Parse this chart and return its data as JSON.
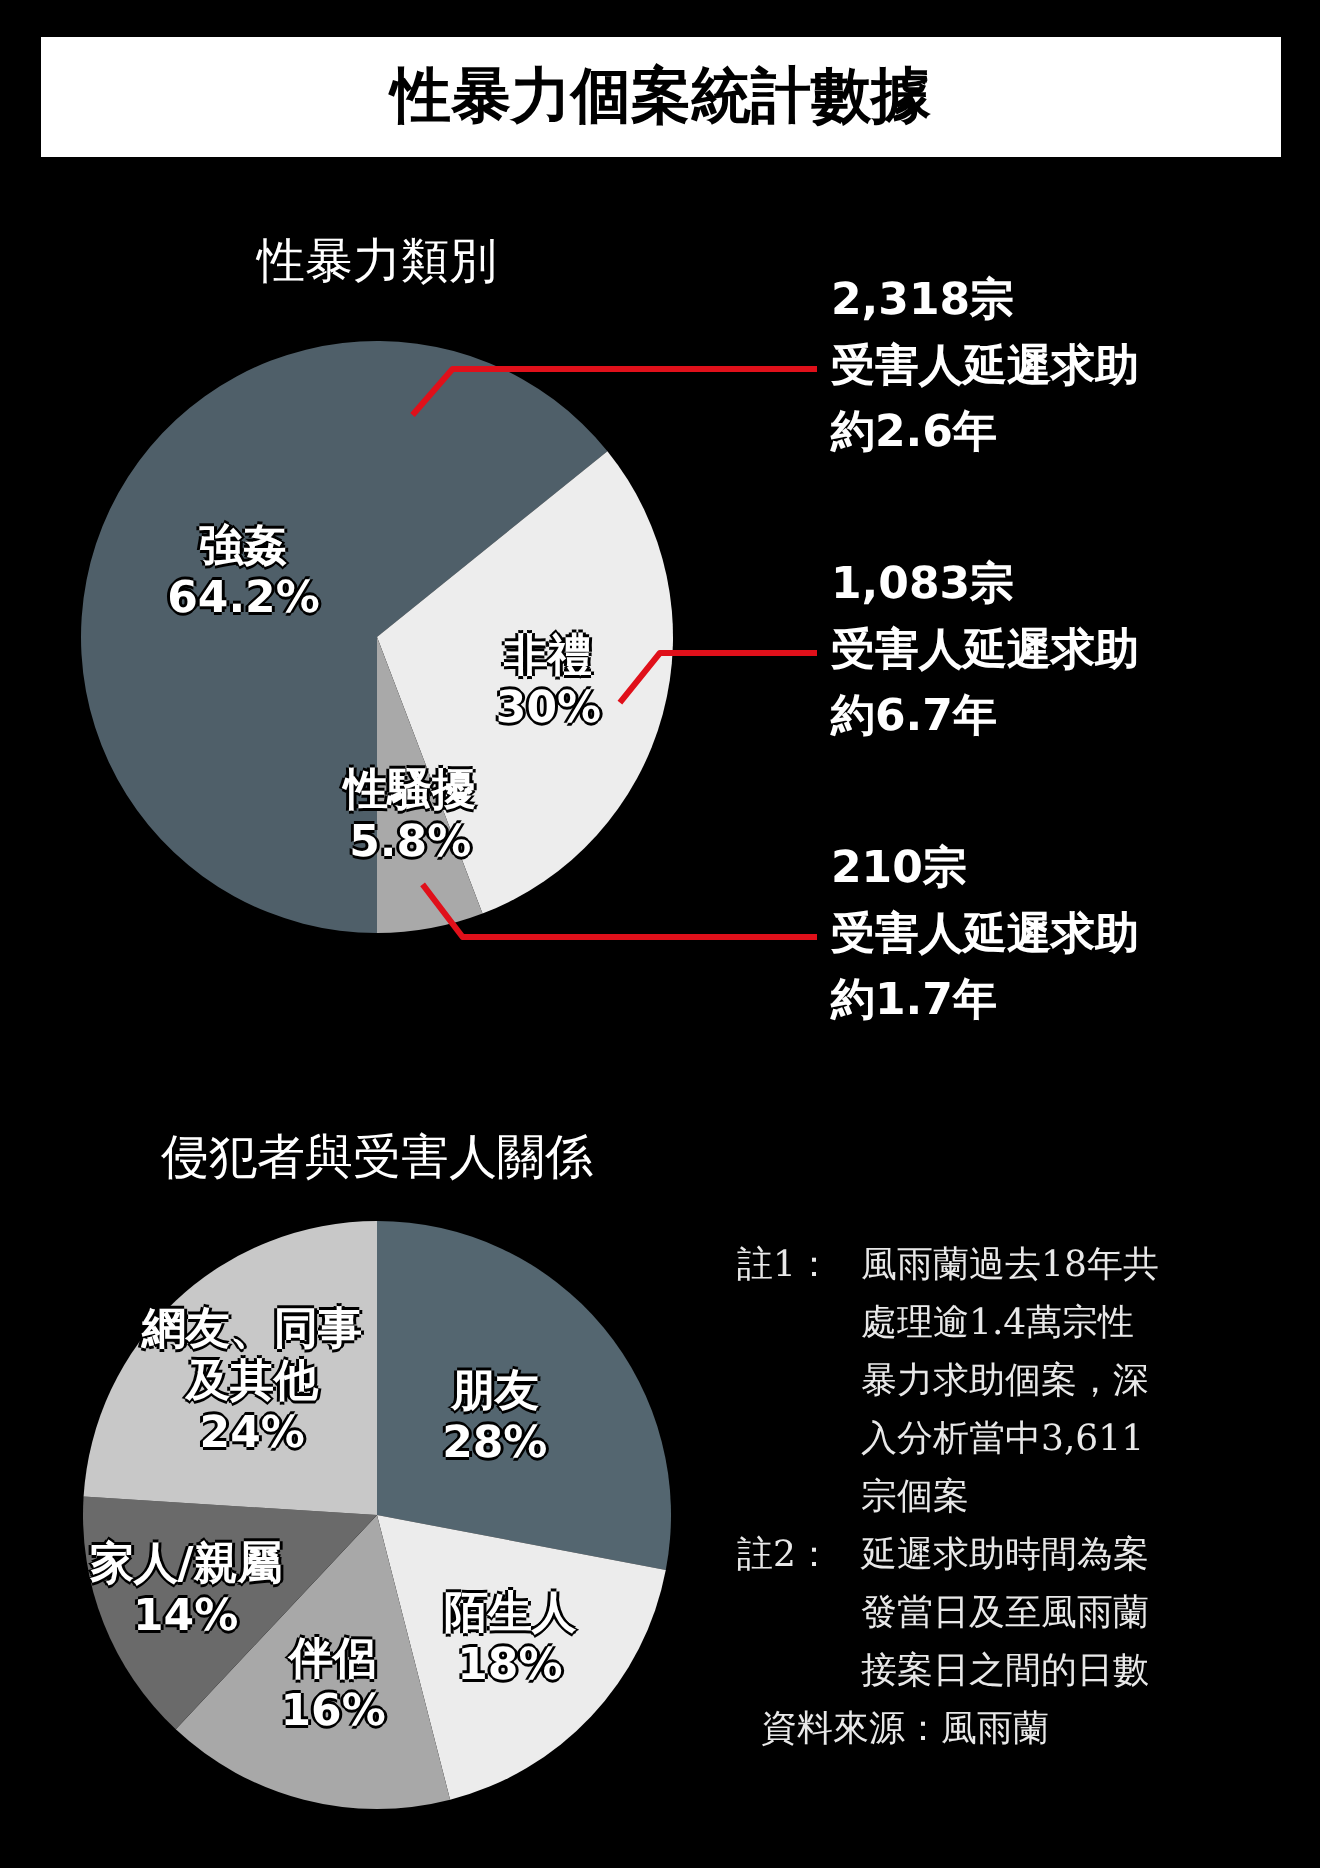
{
  "chart_data": [
    {
      "type": "pie",
      "title": "性暴力個案統計數據",
      "subtitle": "性暴力類別",
      "categories": [
        "強姦",
        "非禮",
        "性騷擾"
      ],
      "values": [
        64.2,
        30,
        5.8
      ],
      "value_labels": [
        "64.2%",
        "30%",
        "5.8%"
      ],
      "colors": [
        "#4f5f69",
        "#ededed",
        "#a9a9a9"
      ],
      "annotations": [
        "2,318宗",
        "受害人延遲求助",
        "約2.6年",
        "1,083宗",
        "受害人延遲求助",
        "約6.7年",
        "210宗",
        "受害人延遲求助",
        "約1.7年"
      ]
    },
    {
      "type": "pie",
      "title": "侵犯者與受害人關係",
      "categories": [
        "朋友",
        "陌生人",
        "伴侶",
        "家人/親屬",
        "網友、同事及其他"
      ],
      "values": [
        28,
        18,
        16,
        14,
        24
      ],
      "value_labels": [
        "28%",
        "18%",
        "16%",
        "14%",
        "24%"
      ],
      "colors": [
        "#546670",
        "#ececec",
        "#a8a8a8",
        "#6a6a6a",
        "#c8c8c8"
      ],
      "annotations": [
        "註1：風雨蘭過去18年共處理逾1.4萬宗性暴力求助個案，深入分析當中3,611宗個案",
        "註2：延遲求助時間為案發當日及至風雨蘭接案日之間的日數",
        "資料來源：風雨蘭"
      ]
    }
  ]
}
